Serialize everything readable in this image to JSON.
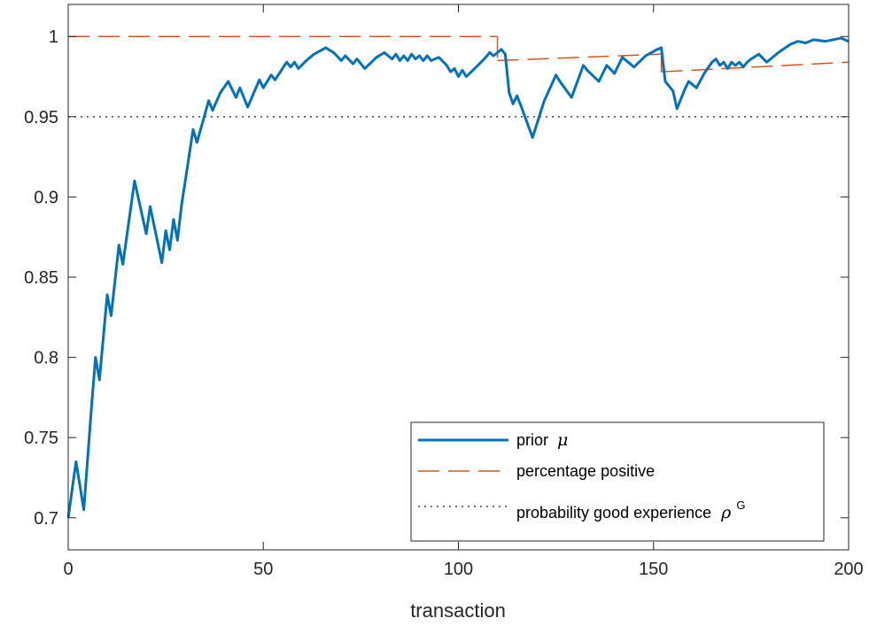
{
  "chart_data": {
    "type": "line",
    "xlabel": "transaction",
    "ylabel": "",
    "xlim": [
      0,
      200
    ],
    "ylim": [
      0.68,
      1.02
    ],
    "xticks": [
      0,
      50,
      100,
      150,
      200
    ],
    "yticks": [
      0.7,
      0.75,
      0.8,
      0.85,
      0.9,
      0.95,
      1
    ],
    "ytick_labels": [
      "0.7",
      "0.75",
      "0.8",
      "0.85",
      "0.9",
      "0.95",
      "1"
    ],
    "grid": false,
    "legend_position": "bottom-right",
    "series": [
      {
        "name": "prior",
        "name_symbol": "μ",
        "style": "solid",
        "color": "#0072BD",
        "x": [
          0,
          2,
          4,
          6,
          7,
          8,
          10,
          11,
          13,
          14,
          17,
          20,
          21,
          24,
          25,
          26,
          27,
          28,
          29,
          32,
          33,
          36,
          37,
          39,
          41,
          43,
          44,
          46,
          49,
          50,
          52,
          53,
          56,
          57,
          58,
          59,
          61,
          63,
          66,
          68,
          70,
          71,
          73,
          74,
          76,
          79,
          81,
          83,
          84,
          85,
          86,
          87,
          88,
          89,
          90,
          91,
          92,
          93,
          95,
          97,
          98,
          99,
          100,
          101,
          102,
          105,
          107,
          108,
          109,
          110,
          111,
          112,
          113,
          114,
          115,
          116,
          119,
          122,
          125,
          126,
          129,
          132,
          133,
          136,
          138,
          140,
          142,
          145,
          148,
          151,
          152,
          153,
          155,
          156,
          158,
          159,
          161,
          163,
          165,
          166,
          167,
          168,
          169,
          170,
          171,
          172,
          173,
          174,
          175,
          177,
          179,
          182,
          185,
          187,
          189,
          191,
          194,
          198,
          200
        ],
        "y": [
          0.7,
          0.735,
          0.705,
          0.77,
          0.8,
          0.786,
          0.839,
          0.826,
          0.87,
          0.858,
          0.91,
          0.877,
          0.894,
          0.859,
          0.879,
          0.867,
          0.886,
          0.873,
          0.894,
          0.942,
          0.934,
          0.96,
          0.954,
          0.965,
          0.972,
          0.962,
          0.968,
          0.956,
          0.973,
          0.968,
          0.976,
          0.973,
          0.984,
          0.981,
          0.984,
          0.98,
          0.985,
          0.989,
          0.993,
          0.99,
          0.985,
          0.988,
          0.983,
          0.986,
          0.98,
          0.987,
          0.99,
          0.986,
          0.989,
          0.985,
          0.988,
          0.985,
          0.989,
          0.986,
          0.988,
          0.985,
          0.988,
          0.985,
          0.987,
          0.982,
          0.978,
          0.98,
          0.975,
          0.979,
          0.975,
          0.982,
          0.987,
          0.99,
          0.988,
          0.99,
          0.992,
          0.989,
          0.965,
          0.958,
          0.963,
          0.957,
          0.937,
          0.96,
          0.976,
          0.972,
          0.962,
          0.982,
          0.979,
          0.972,
          0.982,
          0.977,
          0.987,
          0.981,
          0.988,
          0.992,
          0.993,
          0.972,
          0.966,
          0.955,
          0.967,
          0.972,
          0.968,
          0.977,
          0.984,
          0.986,
          0.982,
          0.984,
          0.98,
          0.984,
          0.982,
          0.984,
          0.981,
          0.984,
          0.986,
          0.989,
          0.984,
          0.99,
          0.995,
          0.997,
          0.996,
          0.998,
          0.997,
          0.999,
          0.997
        ]
      },
      {
        "name": "percentage positive",
        "style": "dashed",
        "color": "#D95319",
        "segments": [
          {
            "x": [
              0,
              110
            ],
            "y": [
              1.0,
              1.0
            ]
          },
          {
            "x": [
              110,
              110
            ],
            "y": [
              1.0,
              0.985
            ]
          },
          {
            "x": [
              110,
              152
            ],
            "y": [
              0.985,
              0.989
            ]
          },
          {
            "x": [
              152,
              152
            ],
            "y": [
              0.989,
              0.978
            ]
          },
          {
            "x": [
              152,
              200
            ],
            "y": [
              0.978,
              0.984
            ]
          }
        ]
      },
      {
        "name": "probability good experience",
        "name_symbol": "ρ",
        "name_superscript": "G",
        "style": "dotted",
        "color": "#404040",
        "x": [
          0,
          200
        ],
        "y": [
          0.95,
          0.95
        ]
      }
    ]
  }
}
